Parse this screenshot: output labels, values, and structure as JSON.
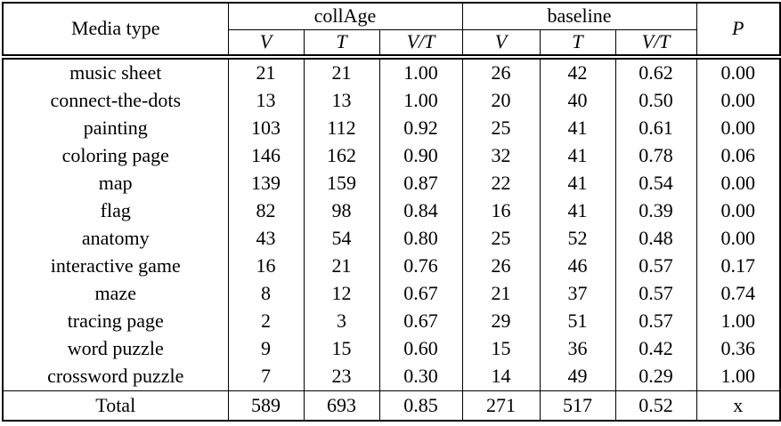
{
  "page": {
    "background_color": "#ffffff",
    "text_color": "#000000"
  },
  "table": {
    "header": {
      "media_type": "Media type",
      "group_collage": "collAge",
      "group_baseline": "baseline",
      "subcolumns": [
        "V",
        "T",
        "V/T",
        "V",
        "T",
        "V/T"
      ],
      "p": "P"
    },
    "rows": [
      {
        "media": "music sheet",
        "collage_v": "21",
        "collage_t": "21",
        "collage_vt": "1.00",
        "baseline_v": "26",
        "baseline_t": "42",
        "baseline_vt": "0.62",
        "p": "0.00"
      },
      {
        "media": "connect-the-dots",
        "collage_v": "13",
        "collage_t": "13",
        "collage_vt": "1.00",
        "baseline_v": "20",
        "baseline_t": "40",
        "baseline_vt": "0.50",
        "p": "0.00"
      },
      {
        "media": "painting",
        "collage_v": "103",
        "collage_t": "112",
        "collage_vt": "0.92",
        "baseline_v": "25",
        "baseline_t": "41",
        "baseline_vt": "0.61",
        "p": "0.00"
      },
      {
        "media": "coloring page",
        "collage_v": "146",
        "collage_t": "162",
        "collage_vt": "0.90",
        "baseline_v": "32",
        "baseline_t": "41",
        "baseline_vt": "0.78",
        "p": "0.06"
      },
      {
        "media": "map",
        "collage_v": "139",
        "collage_t": "159",
        "collage_vt": "0.87",
        "baseline_v": "22",
        "baseline_t": "41",
        "baseline_vt": "0.54",
        "p": "0.00"
      },
      {
        "media": "flag",
        "collage_v": "82",
        "collage_t": "98",
        "collage_vt": "0.84",
        "baseline_v": "16",
        "baseline_t": "41",
        "baseline_vt": "0.39",
        "p": "0.00"
      },
      {
        "media": "anatomy",
        "collage_v": "43",
        "collage_t": "54",
        "collage_vt": "0.80",
        "baseline_v": "25",
        "baseline_t": "52",
        "baseline_vt": "0.48",
        "p": "0.00"
      },
      {
        "media": "interactive game",
        "collage_v": "16",
        "collage_t": "21",
        "collage_vt": "0.76",
        "baseline_v": "26",
        "baseline_t": "46",
        "baseline_vt": "0.57",
        "p": "0.17"
      },
      {
        "media": "maze",
        "collage_v": "8",
        "collage_t": "12",
        "collage_vt": "0.67",
        "baseline_v": "21",
        "baseline_t": "37",
        "baseline_vt": "0.57",
        "p": "0.74"
      },
      {
        "media": "tracing page",
        "collage_v": "2",
        "collage_t": "3",
        "collage_vt": "0.67",
        "baseline_v": "29",
        "baseline_t": "51",
        "baseline_vt": "0.57",
        "p": "1.00"
      },
      {
        "media": "word puzzle",
        "collage_v": "9",
        "collage_t": "15",
        "collage_vt": "0.60",
        "baseline_v": "15",
        "baseline_t": "36",
        "baseline_vt": "0.42",
        "p": "0.36"
      },
      {
        "media": "crossword puzzle",
        "collage_v": "7",
        "collage_t": "23",
        "collage_vt": "0.30",
        "baseline_v": "14",
        "baseline_t": "49",
        "baseline_vt": "0.29",
        "p": "1.00"
      }
    ],
    "total_row": {
      "media": "Total",
      "collage_v": "589",
      "collage_t": "693",
      "collage_vt": "0.85",
      "baseline_v": "271",
      "baseline_t": "517",
      "baseline_vt": "0.52",
      "p": "x"
    }
  }
}
